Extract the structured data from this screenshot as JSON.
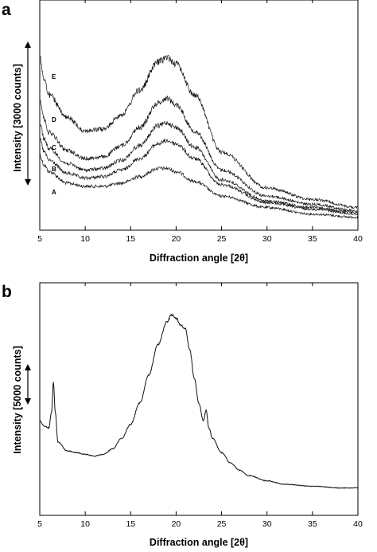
{
  "chart_data": [
    {
      "panel_label": "a",
      "type": "line",
      "xlabel": "Diffraction angle [2θ]",
      "ylabel": "Intensity [3000 counts]",
      "xlim": [
        5,
        40
      ],
      "x_ticks": [
        "5",
        "10",
        "15",
        "20",
        "25",
        "30",
        "35",
        "40"
      ],
      "y_scale_bar": "3000 counts",
      "y_tick_labels": "none",
      "grid": false,
      "series": [
        {
          "name": "A",
          "x": [
            5,
            5.5,
            6,
            8,
            10,
            12,
            14,
            16,
            18,
            19,
            20,
            22,
            25,
            30,
            35,
            40
          ],
          "y": [
            0.4,
            0.34,
            0.3,
            0.23,
            0.21,
            0.21,
            0.23,
            0.27,
            0.32,
            0.32,
            0.3,
            0.24,
            0.15,
            0.08,
            0.04,
            0.02
          ]
        },
        {
          "name": "B",
          "x": [
            5,
            5.5,
            6,
            8,
            10,
            12,
            14,
            16,
            18,
            19,
            20,
            22,
            25,
            30,
            35,
            40
          ],
          "y": [
            0.5,
            0.42,
            0.37,
            0.29,
            0.26,
            0.27,
            0.31,
            0.38,
            0.47,
            0.49,
            0.47,
            0.38,
            0.22,
            0.11,
            0.07,
            0.04
          ]
        },
        {
          "name": "C",
          "x": [
            5,
            5.5,
            6,
            8,
            10,
            12,
            14,
            16,
            18,
            19,
            20,
            22,
            25,
            30,
            35,
            40
          ],
          "y": [
            0.6,
            0.5,
            0.44,
            0.35,
            0.31,
            0.32,
            0.37,
            0.46,
            0.58,
            0.6,
            0.57,
            0.45,
            0.25,
            0.12,
            0.08,
            0.05
          ]
        },
        {
          "name": "D",
          "x": [
            5,
            5.5,
            6,
            8,
            10,
            12,
            14,
            16,
            18,
            19,
            20,
            22,
            25,
            30,
            35,
            40
          ],
          "y": [
            0.75,
            0.62,
            0.54,
            0.43,
            0.38,
            0.39,
            0.46,
            0.57,
            0.72,
            0.75,
            0.71,
            0.55,
            0.31,
            0.15,
            0.1,
            0.06
          ]
        },
        {
          "name": "E",
          "x": [
            5,
            5.5,
            6,
            8,
            10,
            12,
            14,
            16,
            18,
            19,
            20,
            22,
            25,
            30,
            35,
            40
          ],
          "y": [
            1.0,
            0.86,
            0.77,
            0.63,
            0.55,
            0.56,
            0.65,
            0.8,
            0.97,
            1.0,
            0.96,
            0.77,
            0.42,
            0.2,
            0.13,
            0.08
          ]
        }
      ]
    },
    {
      "panel_label": "b",
      "type": "line",
      "xlabel": "Diffraction angle [2θ]",
      "ylabel": "Intensity [5000 counts]",
      "xlim": [
        5,
        40
      ],
      "x_ticks": [
        "5",
        "10",
        "15",
        "20",
        "25",
        "30",
        "35",
        "40"
      ],
      "y_scale_bar": "5000 counts",
      "y_tick_labels": "none",
      "grid": false,
      "series": [
        {
          "x": [
            5,
            5.5,
            6,
            6.3,
            6.5,
            6.7,
            7,
            8,
            9,
            10,
            11,
            12,
            13,
            14,
            15,
            16,
            17,
            18,
            19,
            19.5,
            20,
            20.5,
            21,
            21.5,
            22,
            22.5,
            23,
            23.3,
            23.6,
            24,
            25,
            26,
            27,
            28,
            30,
            32,
            35,
            38,
            40
          ],
          "y": [
            0.4,
            0.37,
            0.36,
            0.45,
            0.62,
            0.45,
            0.28,
            0.23,
            0.22,
            0.21,
            0.2,
            0.21,
            0.24,
            0.3,
            0.38,
            0.5,
            0.66,
            0.83,
            0.96,
            1.0,
            0.98,
            0.94,
            0.92,
            0.8,
            0.64,
            0.5,
            0.4,
            0.46,
            0.36,
            0.3,
            0.22,
            0.16,
            0.12,
            0.09,
            0.06,
            0.04,
            0.03,
            0.02,
            0.02
          ]
        }
      ]
    }
  ]
}
